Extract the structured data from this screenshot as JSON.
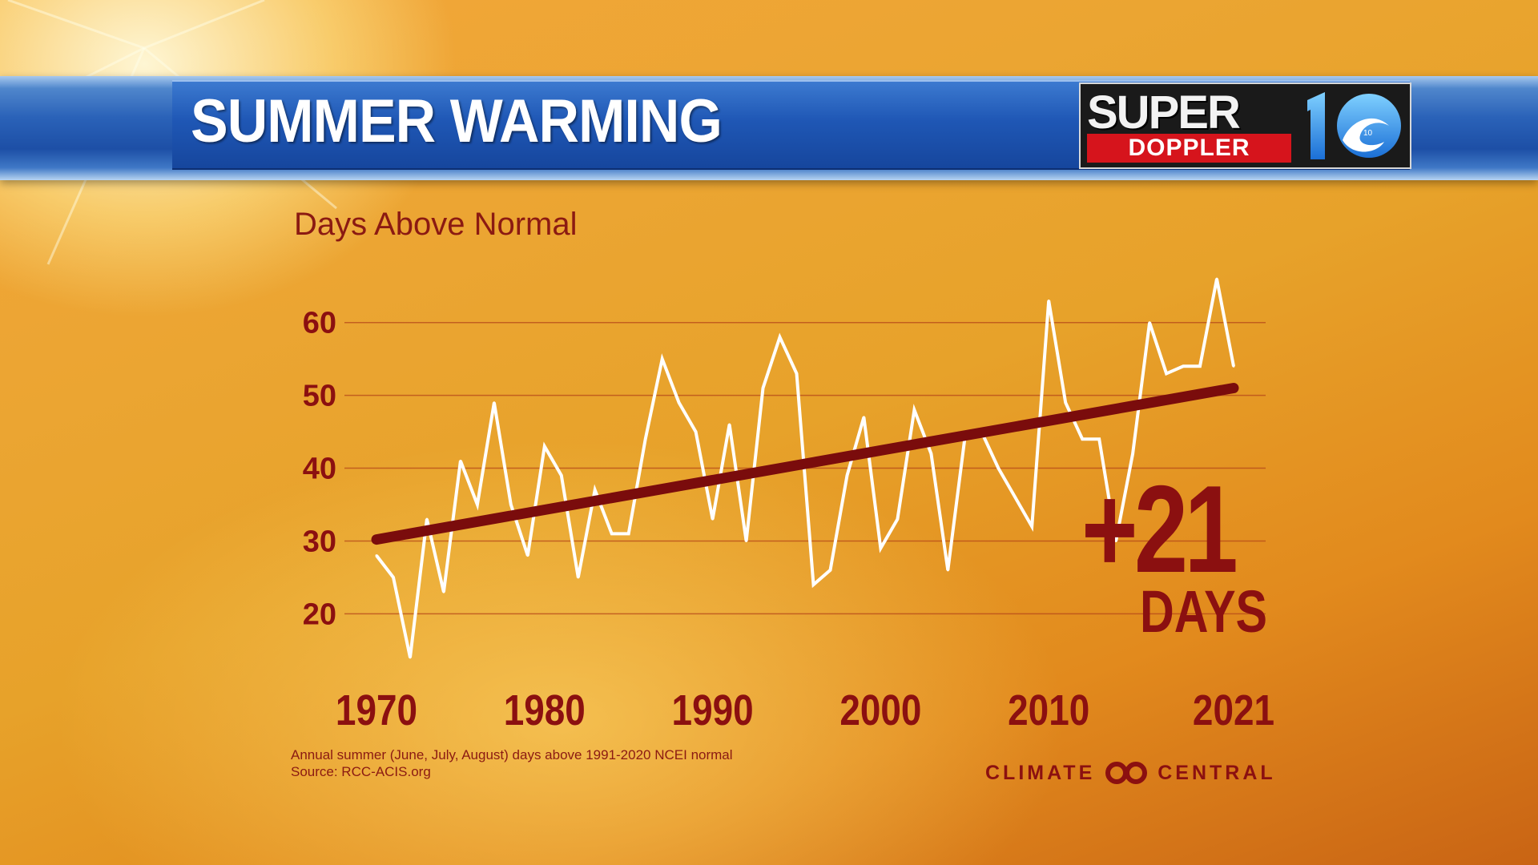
{
  "header": {
    "title": "SUMMER WARMING",
    "logo_line1": "SUPER",
    "logo_line2": "DOPPLER",
    "logo_number": "10"
  },
  "annotation": {
    "value": "+21",
    "unit": "DAYS"
  },
  "footnote": {
    "line1": "Annual summer (June, July, August) days above 1991-2020 NCEI normal",
    "line2": "Source: RCC-ACIS.org"
  },
  "brand": {
    "left": "CLIMATE",
    "right": "CENTRAL"
  },
  "colors": {
    "text_dark_red": "#8b1010",
    "trend_line": "#7a0c0c",
    "data_line": "#ffffff",
    "banner_blue": "#1f57b5"
  },
  "chart_data": {
    "type": "line",
    "title": "",
    "ylabel": "Days Above Normal",
    "xlabel": "",
    "ylim": [
      13,
      68
    ],
    "xlim": [
      1970,
      2021
    ],
    "yticks": [
      20,
      30,
      40,
      50,
      60
    ],
    "xticks": [
      "1970",
      "1980",
      "1990",
      "2000",
      "2010",
      "2021"
    ],
    "grid": true,
    "series": [
      {
        "kind": "data",
        "x": [
          1970,
          1971,
          1972,
          1973,
          1974,
          1975,
          1976,
          1977,
          1978,
          1979,
          1980,
          1981,
          1982,
          1983,
          1984,
          1985,
          1986,
          1987,
          1988,
          1989,
          1990,
          1991,
          1992,
          1993,
          1994,
          1995,
          1996,
          1997,
          1998,
          1999,
          2000,
          2001,
          2002,
          2003,
          2004,
          2005,
          2006,
          2007,
          2008,
          2009,
          2010,
          2011,
          2012,
          2013,
          2014,
          2015,
          2016,
          2017,
          2018,
          2019,
          2020,
          2021
        ],
        "y": [
          28,
          25,
          14,
          33,
          23,
          41,
          35,
          49,
          35,
          28,
          43,
          39,
          25,
          37,
          31,
          31,
          44,
          55,
          49,
          45,
          33,
          46,
          30,
          51,
          58,
          53,
          24,
          26,
          39,
          47,
          29,
          33,
          48,
          42,
          26,
          44,
          45,
          40,
          36,
          32,
          63,
          49,
          44,
          44,
          30,
          42,
          60,
          53,
          54,
          54,
          66,
          54
        ]
      },
      {
        "kind": "trend",
        "x": [
          1970,
          2021
        ],
        "y": [
          30.2,
          51.0
        ]
      }
    ]
  }
}
